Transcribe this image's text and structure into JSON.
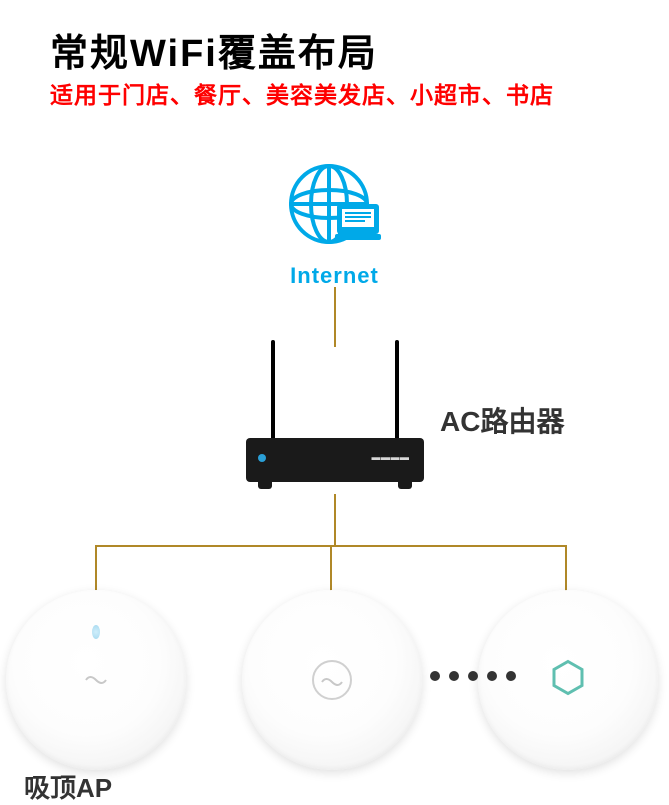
{
  "header": {
    "title": "常规WiFi覆盖布局",
    "subtitle": "适用于门店、餐厅、美容美发店、小超市、书店",
    "title_color": "#000000",
    "subtitle_color": "#ff0000"
  },
  "internet": {
    "label": "Internet",
    "icon_color": "#00a9e8",
    "label_color": "#00a9e8"
  },
  "connections": {
    "line_color": "#b08828"
  },
  "router": {
    "label": "AC路由器",
    "body_color": "#1a1a1a",
    "led_color": "#2a9fd6",
    "brand_text": "▬▬▬▬"
  },
  "access_points": {
    "label": "吸顶AP",
    "ap3_hex_color": "#5fbfb0",
    "dots_color": "#333333",
    "dots_count": 5
  }
}
